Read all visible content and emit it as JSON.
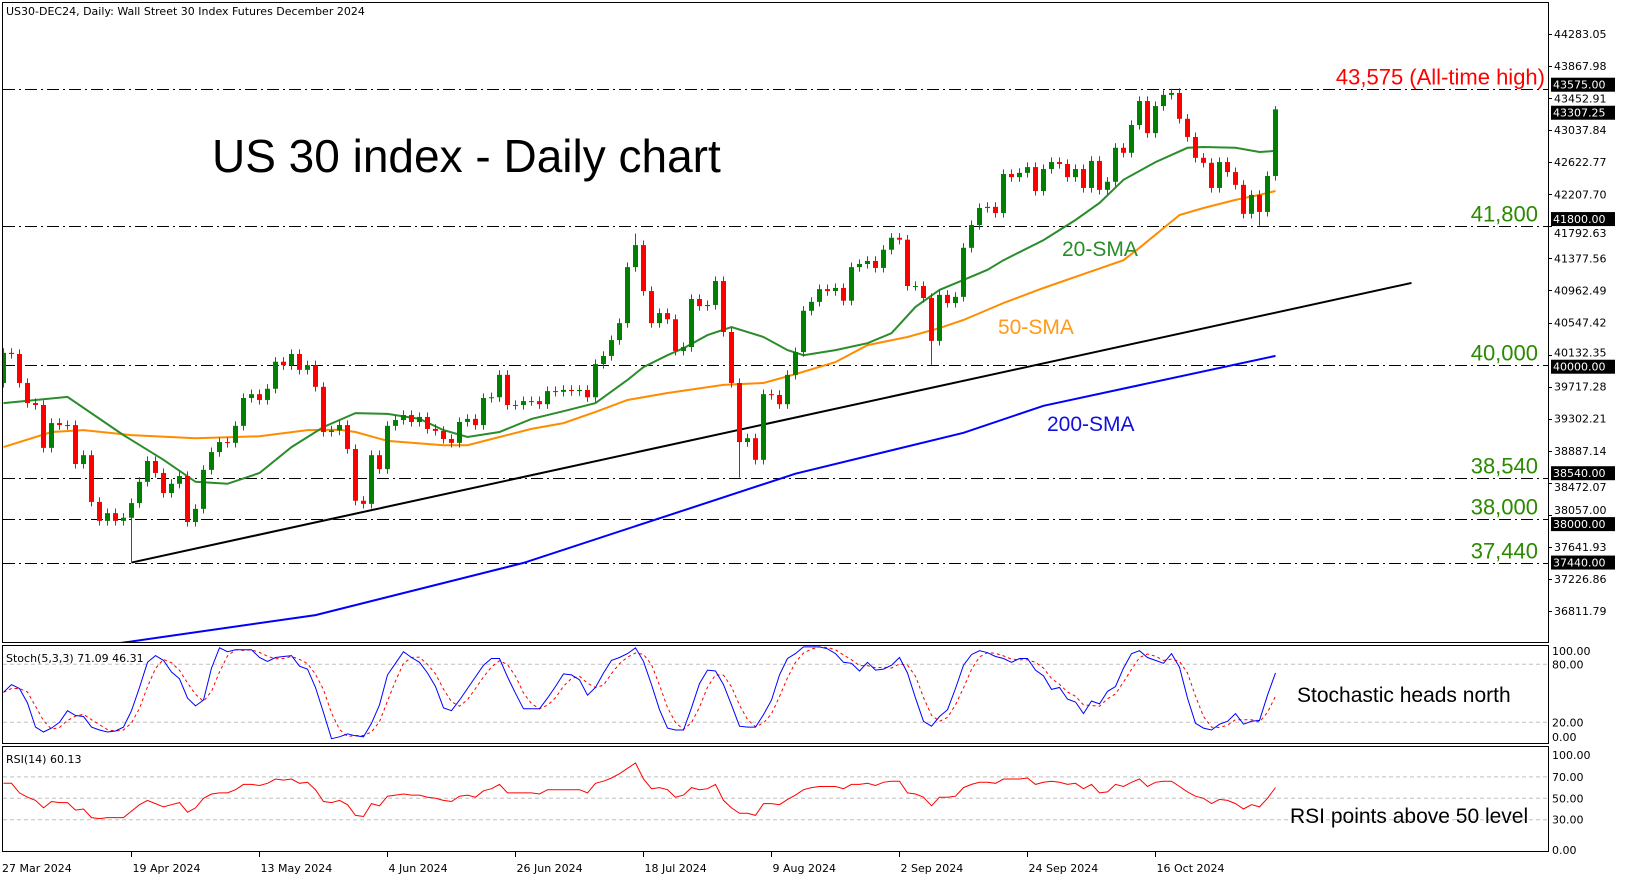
{
  "header": {
    "symbol_line": "US30-DEC24, Daily:  Wall Street 30 Index Futures December 2024"
  },
  "title": "US 30 index - Daily chart",
  "annotations": {
    "sma20": "20-SMA",
    "sma50": "50-SMA",
    "sma200": "200-SMA",
    "stoch_note": "Stochastic heads north",
    "rsi_note": "RSI points above 50 level"
  },
  "colors": {
    "up": "#008000",
    "down": "#ff0000",
    "sma20": "#2a8c2a",
    "sma50": "#ff8c00",
    "sma200": "#0000ff",
    "trendline": "#000000",
    "level_label": "#2b8a00",
    "ath_label": "#ff0000",
    "stoch_k": "#0000ff",
    "stoch_d": "#ff0000",
    "rsi": "#ff0000"
  },
  "chart_data": {
    "type": "candlestick",
    "price_axis": {
      "ticks": [
        44283.05,
        43867.98,
        43452.91,
        43037.84,
        42622.77,
        42207.7,
        41792.63,
        41377.56,
        40962.49,
        40547.42,
        40132.35,
        39717.28,
        39302.21,
        38887.14,
        38472.07,
        38057.0,
        37641.93,
        37226.86,
        36811.79
      ],
      "range": [
        36289,
        44300
      ]
    },
    "price_boxes": [
      "43575.00",
      "43307.25",
      "41800.00",
      "40000.00",
      "38540.00",
      "38000.00",
      "37440.00"
    ],
    "date_labels": [
      "27 Mar 2024",
      "19 Apr 2024",
      "13 May 2024",
      "4 Jun 2024",
      "26 Jun 2024",
      "18 Jul 2024",
      "9 Aug 2024",
      "2 Sep 2024",
      "24 Sep 2024",
      "16 Oct 2024"
    ],
    "date_label_bar_step": 16,
    "first_open": 39765,
    "closes": [
      40155,
      40140,
      39765,
      39505,
      39480,
      38925,
      39246,
      39220,
      39220,
      38716,
      38830,
      38225,
      37980,
      38080,
      37980,
      38020,
      38210,
      38485,
      38755,
      38600,
      38340,
      38460,
      38560,
      37965,
      38135,
      38640,
      38870,
      39000,
      38990,
      39210,
      39570,
      39620,
      39545,
      39690,
      40040,
      39995,
      40140,
      39935,
      39995,
      39715,
      39130,
      39150,
      39220,
      38910,
      38240,
      38200,
      38830,
      38650,
      39210,
      39285,
      39350,
      39260,
      39325,
      39170,
      39145,
      39040,
      38990,
      39260,
      39300,
      39220,
      39570,
      39580,
      39870,
      39480,
      39480,
      39530,
      39530,
      39490,
      39660,
      39650,
      39675,
      39660,
      39675,
      39580,
      40010,
      40115,
      40320,
      40540,
      41265,
      41550,
      40955,
      40540,
      40670,
      40590,
      40180,
      40230,
      40852,
      40760,
      40775,
      41085,
      40425,
      39765,
      39000,
      39050,
      38770,
      39620,
      39610,
      39490,
      39870,
      40165,
      40700,
      40815,
      40980,
      40955,
      40995,
      40830,
      41265,
      41305,
      41345,
      41255,
      41490,
      41645,
      41620,
      41020,
      41020,
      40865,
      40310,
      40905,
      40800,
      40880,
      41515,
      41810,
      42030,
      42045,
      41965,
      42470,
      42430,
      42485,
      42560,
      42250,
      42535,
      42625,
      42600,
      42430,
      42535,
      42290,
      42640,
      42265,
      42370,
      42810,
      42745,
      43105,
      43415,
      43000,
      43350,
      43495,
      43520,
      43185,
      42950,
      42680,
      42615,
      42290,
      42625,
      42495,
      42330,
      41955,
      42200,
      41980,
      42445,
      43307.25
    ],
    "notable_highs": {
      "79": 41700,
      "146": 43575,
      "159": 43350
    },
    "notable_lows": {
      "16": 37440,
      "92": 38540,
      "116": 40000,
      "157": 41800
    },
    "sma20": [
      [
        0,
        39505
      ],
      [
        8,
        39585
      ],
      [
        15,
        39090
      ],
      [
        20,
        38770
      ],
      [
        24,
        38485
      ],
      [
        28,
        38460
      ],
      [
        32,
        38600
      ],
      [
        36,
        38935
      ],
      [
        40,
        39195
      ],
      [
        44,
        39375
      ],
      [
        48,
        39365
      ],
      [
        52,
        39300
      ],
      [
        55,
        39155
      ],
      [
        58,
        39065
      ],
      [
        62,
        39130
      ],
      [
        66,
        39300
      ],
      [
        70,
        39400
      ],
      [
        74,
        39505
      ],
      [
        78,
        39805
      ],
      [
        80,
        39970
      ],
      [
        83,
        40125
      ],
      [
        85,
        40215
      ],
      [
        88,
        40385
      ],
      [
        91,
        40490
      ],
      [
        95,
        40360
      ],
      [
        98,
        40190
      ],
      [
        100,
        40125
      ],
      [
        104,
        40190
      ],
      [
        108,
        40280
      ],
      [
        111,
        40410
      ],
      [
        114,
        40750
      ],
      [
        117,
        40970
      ],
      [
        120,
        41100
      ],
      [
        123,
        41230
      ],
      [
        125,
        41355
      ],
      [
        130,
        41615
      ],
      [
        134,
        41875
      ],
      [
        137,
        42095
      ],
      [
        140,
        42395
      ],
      [
        144,
        42625
      ],
      [
        148,
        42810
      ],
      [
        150,
        42820
      ],
      [
        154,
        42810
      ],
      [
        157,
        42755
      ],
      [
        159,
        42770
      ]
    ],
    "sma50": [
      [
        0,
        38935
      ],
      [
        6,
        39130
      ],
      [
        10,
        39155
      ],
      [
        16,
        39090
      ],
      [
        24,
        39050
      ],
      [
        32,
        39075
      ],
      [
        38,
        39155
      ],
      [
        42,
        39160
      ],
      [
        44,
        39130
      ],
      [
        48,
        39015
      ],
      [
        55,
        38960
      ],
      [
        58,
        38960
      ],
      [
        62,
        39065
      ],
      [
        66,
        39170
      ],
      [
        70,
        39245
      ],
      [
        74,
        39390
      ],
      [
        78,
        39545
      ],
      [
        83,
        39635
      ],
      [
        90,
        39740
      ],
      [
        95,
        39765
      ],
      [
        99,
        39880
      ],
      [
        104,
        40035
      ],
      [
        108,
        40255
      ],
      [
        113,
        40360
      ],
      [
        117,
        40475
      ],
      [
        120,
        40580
      ],
      [
        125,
        40800
      ],
      [
        130,
        40995
      ],
      [
        135,
        41175
      ],
      [
        140,
        41355
      ],
      [
        142,
        41515
      ],
      [
        145,
        41770
      ],
      [
        147,
        41940
      ],
      [
        150,
        42030
      ],
      [
        154,
        42135
      ],
      [
        157,
        42200
      ],
      [
        159,
        42250
      ]
    ],
    "sma200": [
      [
        10,
        36330
      ],
      [
        39,
        36760
      ],
      [
        65,
        37435
      ],
      [
        99,
        38590
      ],
      [
        120,
        39120
      ],
      [
        130,
        39470
      ],
      [
        159,
        40115
      ]
    ],
    "trendline": [
      [
        16,
        37440
      ],
      [
        176,
        41060
      ]
    ],
    "levels": [
      {
        "price": 43575,
        "label": "43,575 (All-time high)",
        "ath": true
      },
      {
        "price": 41800,
        "label": "41,800"
      },
      {
        "price": 40000,
        "label": "40,000"
      },
      {
        "price": 38540,
        "label": "38,540"
      },
      {
        "price": 38000,
        "label": "38,000"
      },
      {
        "price": 37440,
        "label": "37,440"
      }
    ],
    "stochastic": {
      "header": "Stoch(5,3,3) 71.09 46.31",
      "levels": [
        80,
        20
      ],
      "axis_labels": [
        "100.00",
        "80.00",
        "20.00",
        "0.00"
      ],
      "k": [
        51,
        59,
        55,
        40,
        15,
        10,
        14,
        20,
        32,
        27,
        26,
        15,
        12,
        10,
        11,
        15,
        32,
        56,
        82,
        89,
        84,
        72,
        65,
        45,
        37,
        43,
        76,
        97,
        93,
        95,
        95,
        95,
        87,
        83,
        87,
        88,
        89,
        78,
        75,
        56,
        30,
        3,
        5,
        8,
        6,
        5,
        19,
        38,
        69,
        81,
        93,
        87,
        82,
        71,
        57,
        35,
        32,
        43,
        55,
        67,
        79,
        86,
        86,
        67,
        50,
        34,
        34,
        34,
        45,
        57,
        70,
        69,
        64,
        48,
        56,
        71,
        84,
        87,
        91,
        97,
        83,
        59,
        33,
        14,
        12,
        12,
        35,
        60,
        74,
        73,
        59,
        38,
        16,
        15,
        15,
        28,
        43,
        69,
        86,
        91,
        98,
        98,
        98,
        96,
        91,
        82,
        81,
        73,
        82,
        74,
        75,
        79,
        87,
        71,
        45,
        21,
        16,
        26,
        33,
        55,
        79,
        90,
        94,
        92,
        88,
        86,
        82,
        86,
        86,
        74,
        68,
        54,
        56,
        44,
        41,
        29,
        42,
        39,
        52,
        57,
        76,
        91,
        94,
        87,
        84,
        81,
        91,
        77,
        45,
        19,
        14,
        12,
        18,
        21,
        29,
        18,
        21,
        22,
        48,
        71.09
      ],
      "d_period": 3
    },
    "rsi": {
      "header": "RSI(14) 60.13",
      "levels": [
        70,
        50,
        30
      ],
      "axis_labels": [
        "100.00",
        "70.00",
        "50.00",
        "30.00",
        "0.00"
      ],
      "values": [
        64,
        64,
        55,
        51,
        48,
        41,
        47,
        46,
        46,
        39,
        40,
        32,
        31,
        32,
        32,
        32,
        38,
        44,
        48,
        45,
        42,
        44,
        46,
        37,
        41,
        50,
        54,
        55,
        55,
        58,
        63,
        63,
        62,
        64,
        68,
        67,
        68,
        64,
        65,
        58,
        47,
        46,
        48,
        44,
        34,
        33,
        45,
        43,
        52,
        53,
        54,
        53,
        53,
        51,
        50,
        48,
        47,
        52,
        53,
        51,
        57,
        59,
        63,
        55,
        55,
        55,
        55,
        54,
        58,
        58,
        58,
        58,
        58,
        55,
        64,
        66,
        69,
        73,
        78,
        83,
        68,
        59,
        60,
        58,
        51,
        53,
        60,
        58,
        59,
        63,
        48,
        41,
        36,
        36,
        34,
        45,
        45,
        44,
        49,
        53,
        58,
        60,
        61,
        61,
        61,
        59,
        63,
        63,
        64,
        62,
        65,
        66,
        66,
        55,
        54,
        51,
        43,
        51,
        51,
        52,
        60,
        63,
        65,
        65,
        64,
        68,
        68,
        68,
        69,
        63,
        65,
        66,
        65,
        63,
        64,
        59,
        63,
        55,
        56,
        63,
        61,
        65,
        68,
        61,
        65,
        66,
        66,
        61,
        56,
        52,
        50,
        45,
        49,
        48,
        45,
        40,
        44,
        42,
        50,
        60.13
      ]
    }
  }
}
